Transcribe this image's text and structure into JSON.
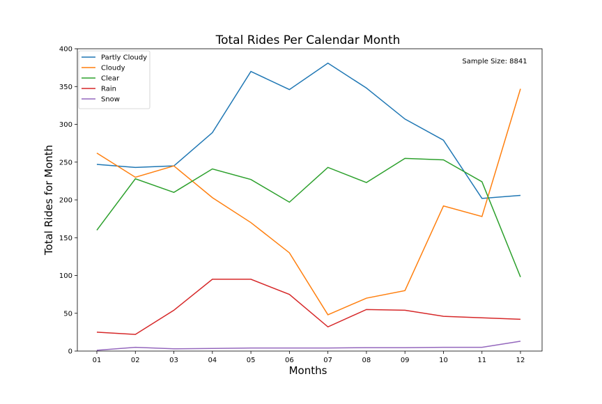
{
  "chart_data": {
    "type": "line",
    "title": "Total Rides Per Calendar Month",
    "xlabel": "Months",
    "ylabel": "Total Rides for Month",
    "annotation": "Sample Size: 8841",
    "categories": [
      "01",
      "02",
      "03",
      "04",
      "05",
      "06",
      "07",
      "08",
      "09",
      "10",
      "11",
      "12"
    ],
    "ylim": [
      0,
      400
    ],
    "yticks": [
      0,
      50,
      100,
      150,
      200,
      250,
      300,
      350,
      400
    ],
    "grid": false,
    "legend_position": "top-left",
    "series": [
      {
        "name": "Partly Cloudy",
        "color": "#1f77b4",
        "values": [
          247,
          243,
          245,
          289,
          370,
          346,
          381,
          348,
          307,
          279,
          202,
          206
        ]
      },
      {
        "name": "Cloudy",
        "color": "#ff7f0e",
        "values": [
          262,
          230,
          245,
          203,
          170,
          130,
          48,
          70,
          80,
          192,
          178,
          347
        ]
      },
      {
        "name": "Clear",
        "color": "#2ca02c",
        "values": [
          160,
          228,
          210,
          241,
          227,
          197,
          243,
          223,
          255,
          253,
          224,
          98
        ]
      },
      {
        "name": "Rain",
        "color": "#d62728",
        "values": [
          25,
          22,
          54,
          95,
          95,
          75,
          32,
          55,
          54,
          46,
          44,
          42
        ]
      },
      {
        "name": "Snow",
        "color": "#9467bd",
        "values": [
          1,
          5,
          3,
          3.5,
          4,
          4,
          4,
          4.5,
          4.5,
          5,
          5,
          13
        ]
      }
    ]
  }
}
